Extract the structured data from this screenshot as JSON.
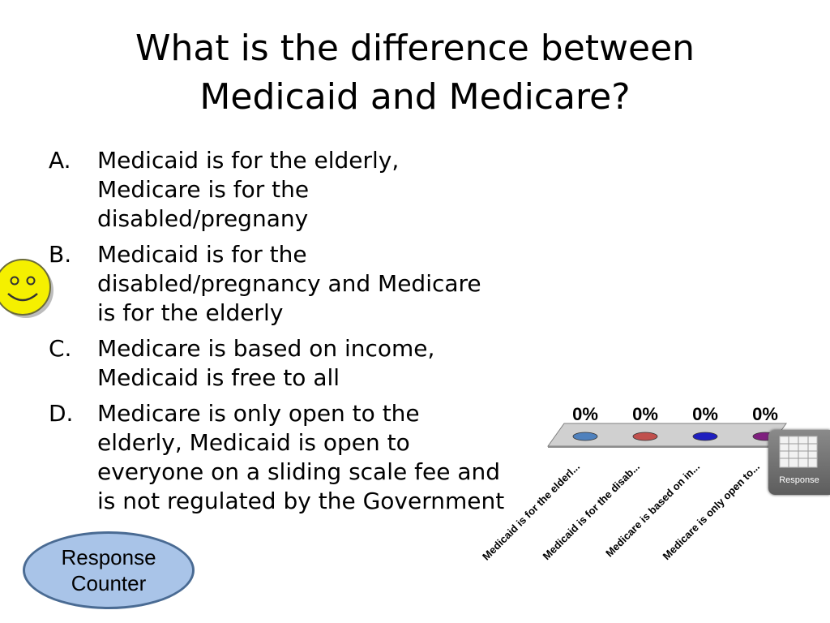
{
  "title": {
    "line1": "What is the difference between",
    "line2": "Medicaid and Medicare?"
  },
  "answers": [
    {
      "letter": "A.",
      "lines": [
        "Medicaid is for the elderly,",
        "Medicare is for the",
        "disabled/pregnany"
      ]
    },
    {
      "letter": "B.",
      "lines": [
        "Medicaid is for the",
        "disabled/pregnancy and Medicare",
        "is for the elderly"
      ]
    },
    {
      "letter": "C.",
      "lines": [
        "Medicare is based on income,",
        "Medicaid is free to all"
      ]
    },
    {
      "letter": "D.",
      "lines": [
        "Medicare is only open to the",
        "elderly, Medicaid is open to",
        "everyone on a sliding scale fee and",
        "is not regulated by the Government"
      ]
    }
  ],
  "response_counter": {
    "line1": "Response",
    "line2": "Counter"
  },
  "response_widget": {
    "label": "Response"
  },
  "icons": {
    "smiley": "smiley-face-icon",
    "grid": "grid-icon"
  },
  "colors": {
    "smiley_fill": "#f5f000",
    "counter_fill": "#a9c4e8",
    "platform": "#a6a6a6",
    "bar_a": "#4f81bd",
    "bar_b": "#c0504d",
    "bar_c": "#1f1fbf",
    "bar_d": "#7f1f7f"
  },
  "chart_data": {
    "type": "bar",
    "categories": [
      "Medicaid is for the elderl...",
      "Medicaid is for the disab...",
      "Medicare is based on in...",
      "Medicare is only open to..."
    ],
    "values": [
      0,
      0,
      0,
      0
    ],
    "data_labels": [
      "0%",
      "0%",
      "0%",
      "0%"
    ],
    "ylim": [
      0,
      100
    ]
  }
}
